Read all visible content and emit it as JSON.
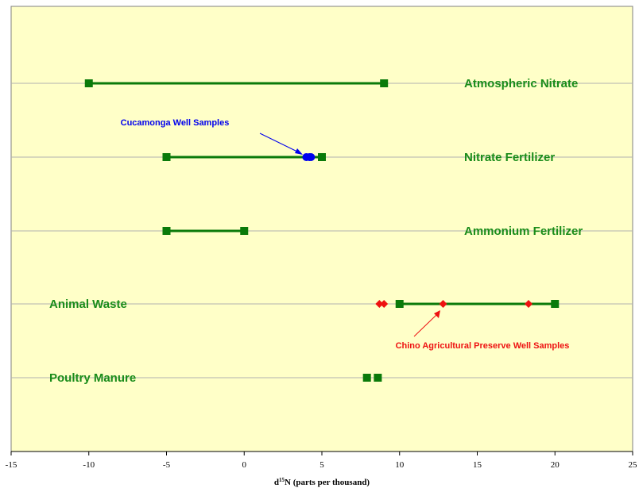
{
  "chart_data": {
    "type": "scatter",
    "xlabel_main": "d",
    "xlabel_sup": "15",
    "xlabel_rest": "N (parts per thousand)",
    "xlim": [
      -15,
      25
    ],
    "xticks": [
      -15,
      -10,
      -5,
      0,
      5,
      10,
      15,
      20,
      25
    ],
    "grid": "horizontal gridlines at each category",
    "colors": {
      "plot_bg": "#ffffc8",
      "grid": "#b0b0b0",
      "green": "#0a7a0a",
      "label_green": "#1a8c1a",
      "blue": "#0000ee",
      "red": "#ee1111"
    },
    "categories": [
      {
        "name": "Atmospheric Nitrate",
        "label_side": "right",
        "range": [
          -10,
          9
        ],
        "markers": [
          -10,
          9
        ]
      },
      {
        "name": "Nitrate Fertilizer",
        "label_side": "right",
        "range": [
          -5,
          5
        ],
        "markers": [
          -5,
          5
        ]
      },
      {
        "name": "Ammonium Fertilizer",
        "label_side": "right",
        "range": [
          -5,
          0
        ],
        "markers": [
          -5,
          0
        ]
      },
      {
        "name": "Animal Waste",
        "label_side": "left",
        "range": [
          10,
          20
        ],
        "markers": [
          10,
          20
        ]
      },
      {
        "name": "Poultry Manure",
        "label_side": "left",
        "range": null,
        "markers": [
          7.9,
          8.6
        ]
      }
    ],
    "sample_series": [
      {
        "name": "Cucamonga Well Samples",
        "color": "blue",
        "category_index": 1,
        "x": [
          4.0,
          4.2,
          4.3
        ]
      },
      {
        "name": "Chino Agricultural Preserve Well Samples",
        "color": "red",
        "category_index": 3,
        "x": [
          8.7,
          9.0,
          10.0,
          12.8,
          18.3
        ]
      }
    ]
  }
}
